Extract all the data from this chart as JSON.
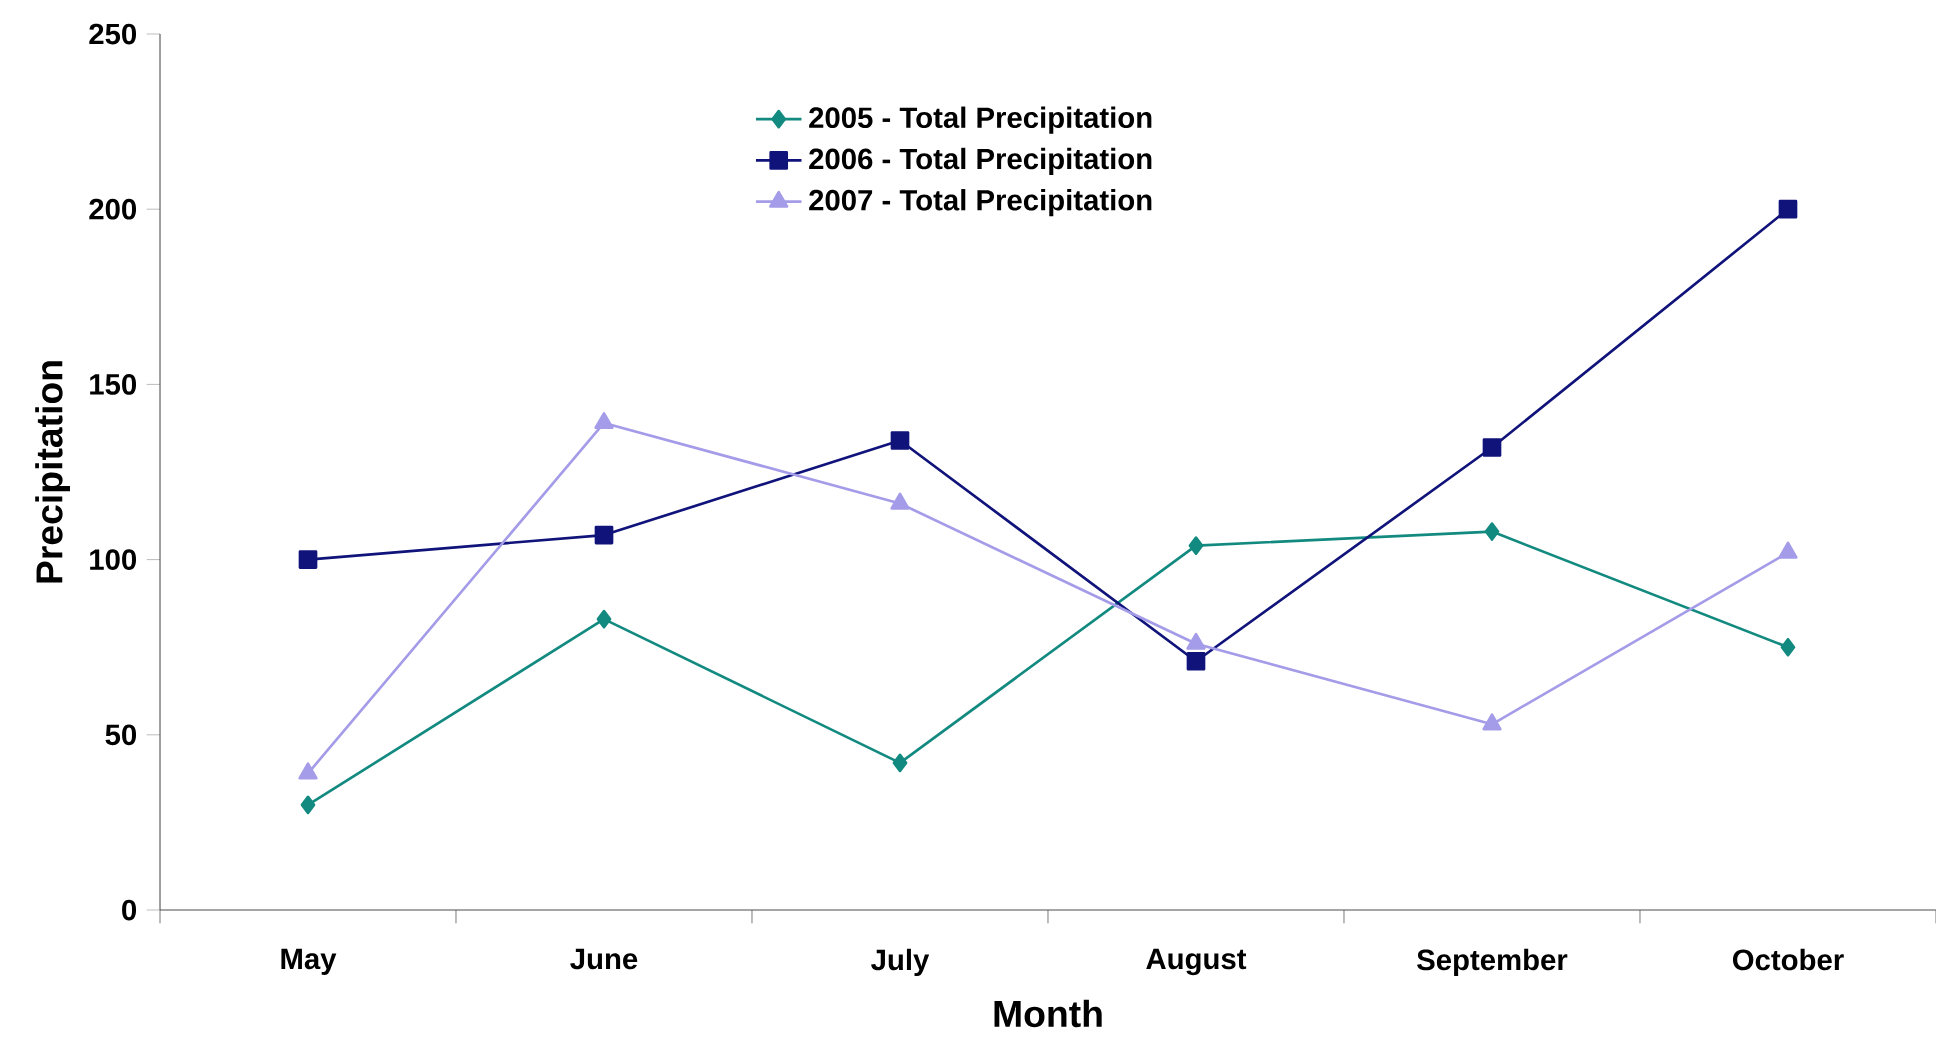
{
  "chart_data": {
    "type": "line",
    "xlabel": "Month",
    "ylabel": "Precipitation",
    "categories": [
      "May",
      "June",
      "July",
      "August",
      "September",
      "October"
    ],
    "series": [
      {
        "name": "2005 - Total Precipitation",
        "color": "#138a80",
        "marker": "diamond",
        "values": [
          30,
          83,
          42,
          104,
          108,
          75
        ]
      },
      {
        "name": "2006 - Total Precipitation",
        "color": "#10137a",
        "marker": "square",
        "values": [
          100,
          107,
          134,
          71,
          132,
          200
        ]
      },
      {
        "name": "2007 - Total Precipitation",
        "color": "#a49ce8",
        "marker": "triangle",
        "values": [
          39,
          139,
          116,
          76,
          53,
          102
        ]
      }
    ],
    "ylim": [
      0,
      250
    ],
    "yticks": [
      0,
      50,
      100,
      150,
      200,
      250
    ],
    "legend": "top"
  }
}
